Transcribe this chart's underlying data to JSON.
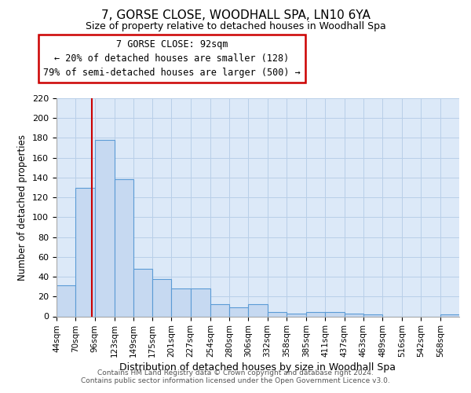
{
  "title": "7, GORSE CLOSE, WOODHALL SPA, LN10 6YA",
  "subtitle": "Size of property relative to detached houses in Woodhall Spa",
  "xlabel": "Distribution of detached houses by size in Woodhall Spa",
  "ylabel": "Number of detached properties",
  "bin_labels": [
    "44sqm",
    "70sqm",
    "96sqm",
    "123sqm",
    "149sqm",
    "175sqm",
    "201sqm",
    "227sqm",
    "254sqm",
    "280sqm",
    "306sqm",
    "332sqm",
    "358sqm",
    "385sqm",
    "411sqm",
    "437sqm",
    "463sqm",
    "489sqm",
    "516sqm",
    "542sqm",
    "568sqm"
  ],
  "bar_heights": [
    31,
    130,
    178,
    138,
    48,
    38,
    28,
    28,
    12,
    9,
    12,
    4,
    3,
    4,
    4,
    3,
    2,
    0,
    0,
    0,
    2
  ],
  "bar_color": "#c6d9f1",
  "bar_edgecolor": "#5b9bd5",
  "vline_x": 92,
  "vline_color": "#cc0000",
  "ylim": [
    0,
    220
  ],
  "yticks": [
    0,
    20,
    40,
    60,
    80,
    100,
    120,
    140,
    160,
    180,
    200,
    220
  ],
  "bin_edges": [
    44,
    70,
    96,
    123,
    149,
    175,
    201,
    227,
    254,
    280,
    306,
    332,
    358,
    385,
    411,
    437,
    463,
    489,
    516,
    542,
    568,
    594
  ],
  "annotation_title": "7 GORSE CLOSE: 92sqm",
  "annotation_line1": "← 20% of detached houses are smaller (128)",
  "annotation_line2": "79% of semi-detached houses are larger (500) →",
  "footer1": "Contains HM Land Registry data © Crown copyright and database right 2024.",
  "footer2": "Contains public sector information licensed under the Open Government Licence v3.0.",
  "background_color": "#dce9f8",
  "plot_background": "#ffffff",
  "grid_color": "#b8cfe8"
}
